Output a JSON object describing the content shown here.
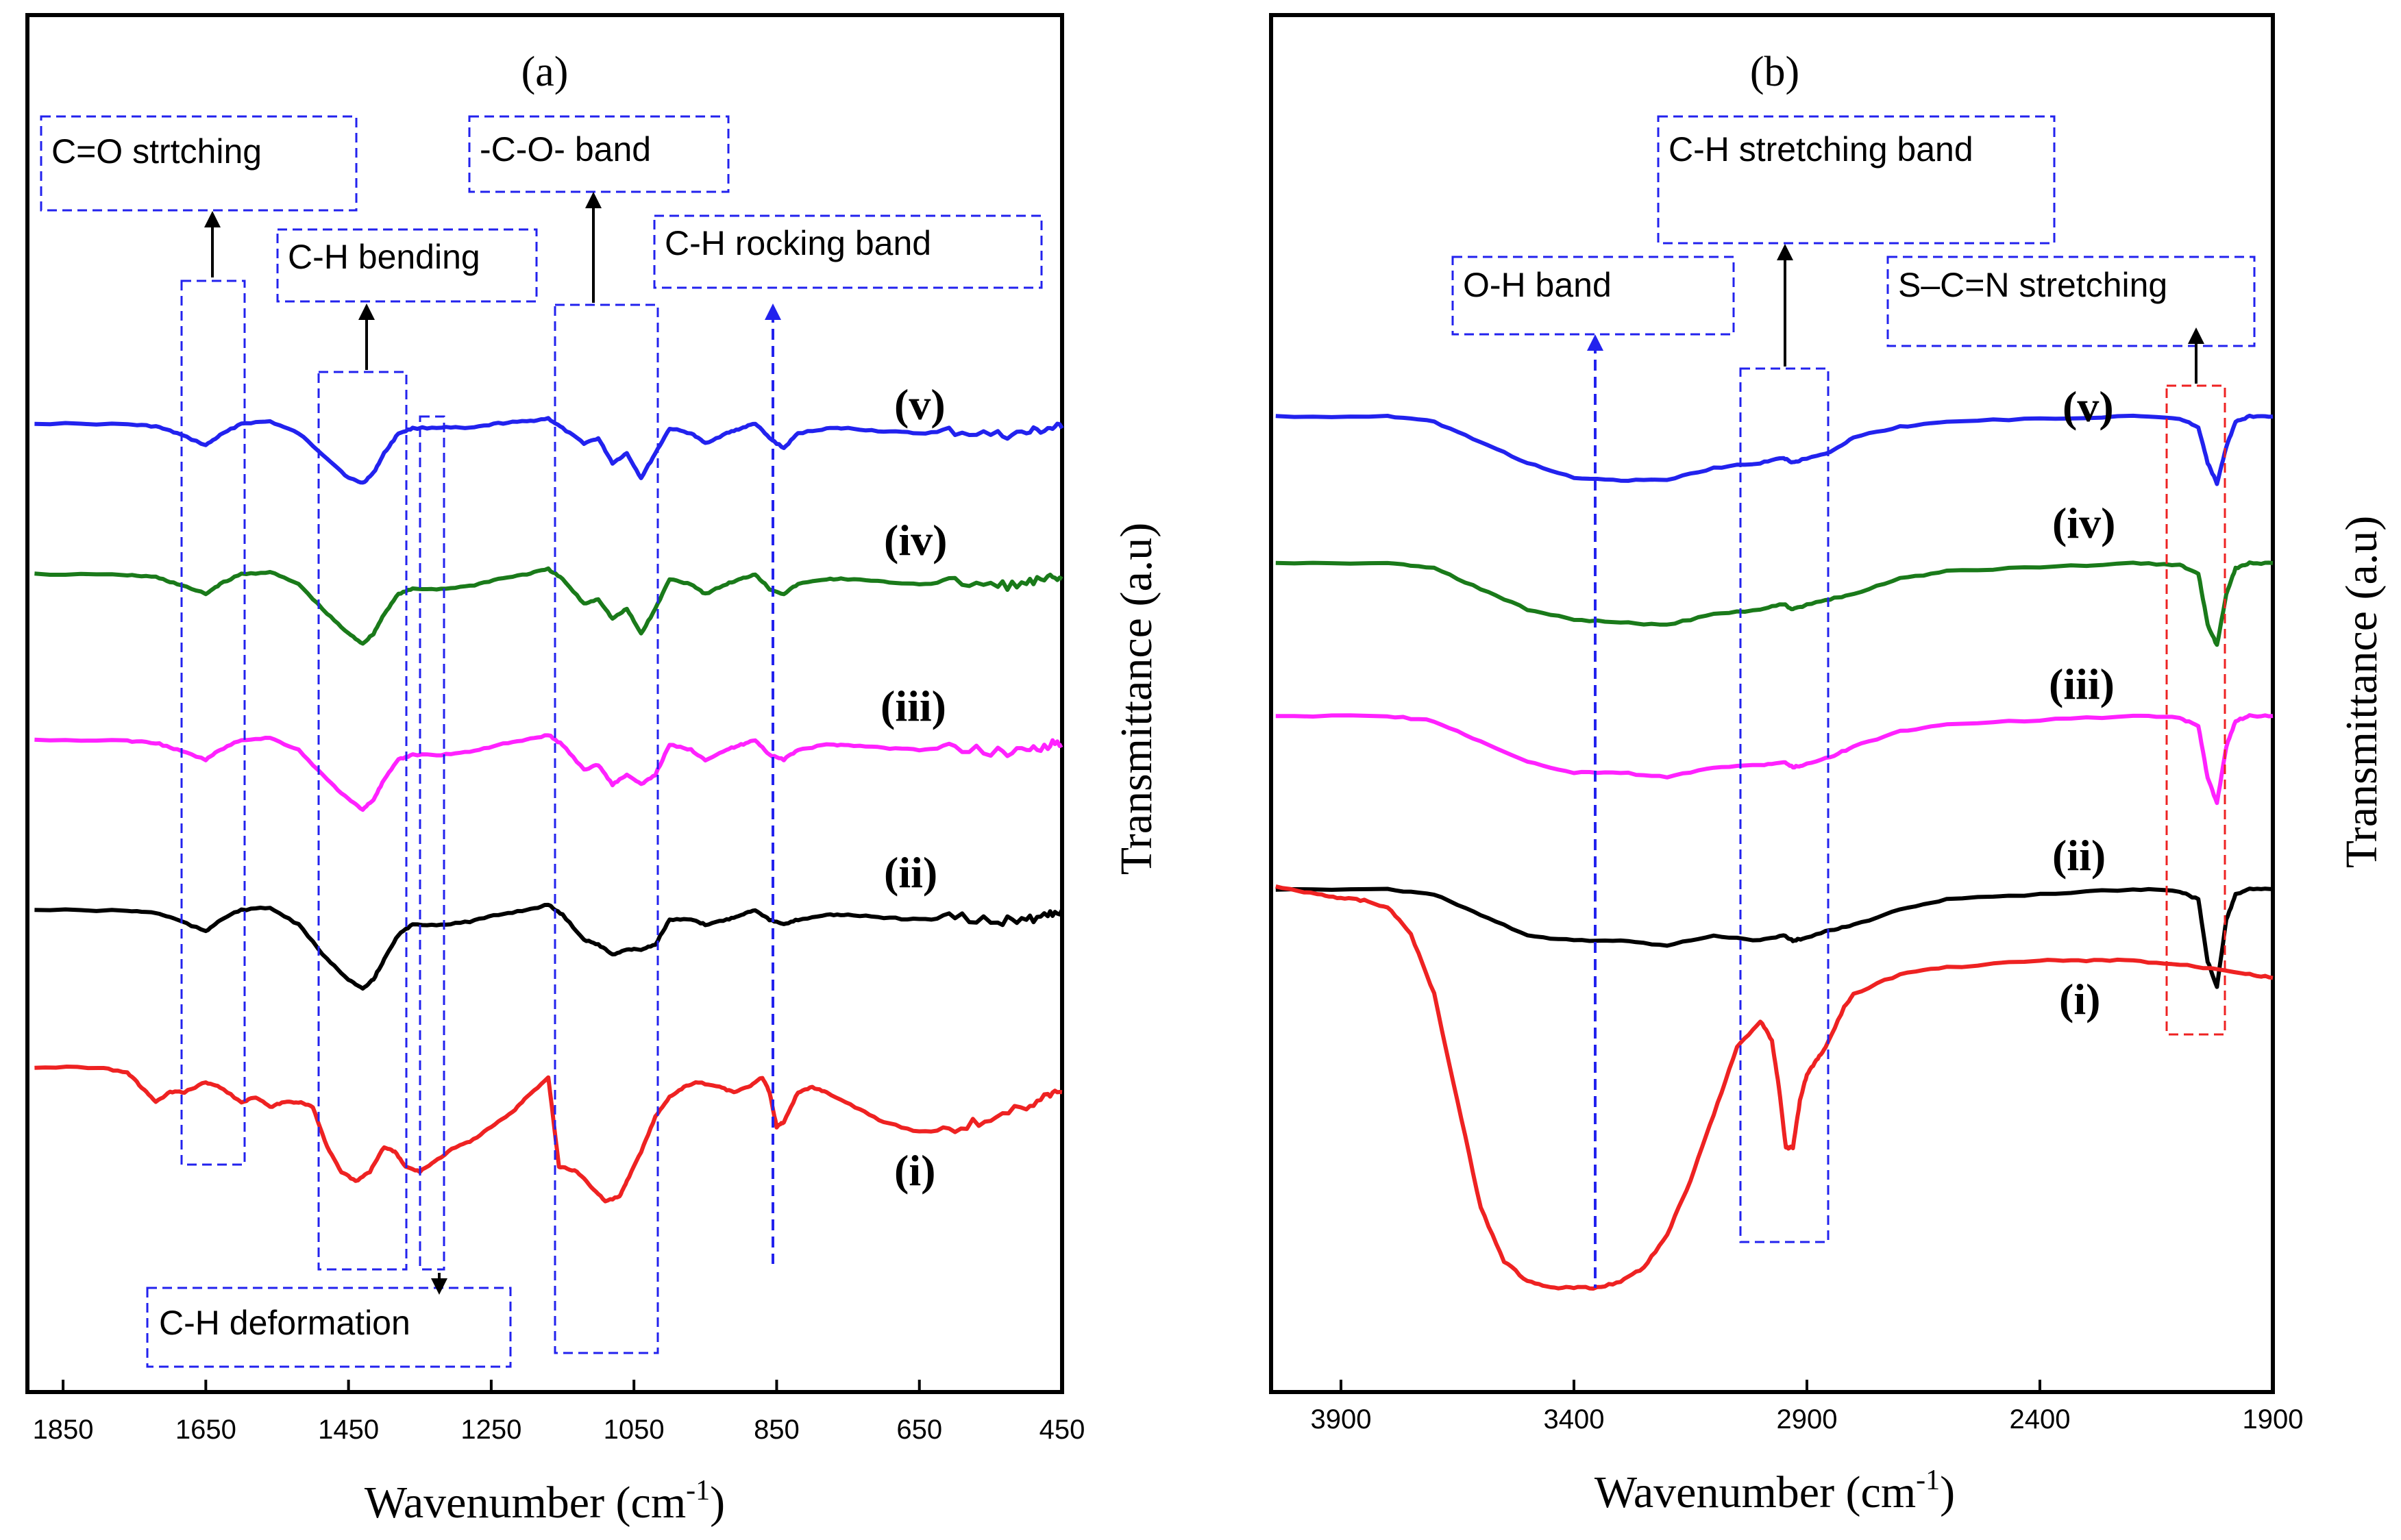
{
  "chart_data": [
    {
      "panel": "(a)",
      "type": "line",
      "xlabel": "Wavenumber (cm",
      "xlabel_sup": "-1",
      "xlabel_end": ")",
      "ylabel": "Transmittance (a.u)",
      "xlim": [
        1900,
        450
      ],
      "xticks": [
        1850,
        1650,
        1450,
        1250,
        1050,
        850,
        650,
        450
      ],
      "series": [
        {
          "name": "(v)",
          "color": "#2222ee",
          "offset": 4,
          "x": [
            1890,
            1760,
            1720,
            1690,
            1650,
            1630,
            1600,
            1560,
            1520,
            1480,
            1450,
            1430,
            1415,
            1400,
            1380,
            1360,
            1320,
            1280,
            1240,
            1200,
            1170,
            1150,
            1120,
            1100,
            1080,
            1060,
            1040,
            1020,
            1000,
            970,
            950,
            920,
            900,
            880,
            860,
            840,
            820,
            780,
            750,
            700,
            650,
            600,
            540,
            500,
            470,
            450
          ],
          "y": [
            0.0,
            -0.01,
            -0.03,
            -0.1,
            -0.22,
            -0.12,
            0.0,
            0.02,
            -0.1,
            -0.35,
            -0.55,
            -0.6,
            -0.5,
            -0.3,
            -0.1,
            -0.05,
            -0.04,
            -0.05,
            0.0,
            0.02,
            0.05,
            -0.05,
            -0.2,
            -0.15,
            -0.4,
            -0.3,
            -0.55,
            -0.3,
            -0.05,
            -0.1,
            -0.2,
            -0.1,
            -0.05,
            0.0,
            -0.15,
            -0.25,
            -0.1,
            -0.05,
            -0.05,
            -0.08,
            -0.1,
            -0.08,
            -0.12,
            -0.1,
            -0.05,
            -0.05
          ]
        },
        {
          "name": "(iv)",
          "color": "#1a7a1a",
          "offset": 3,
          "x": [
            1890,
            1760,
            1720,
            1690,
            1650,
            1630,
            1600,
            1560,
            1520,
            1480,
            1450,
            1430,
            1415,
            1400,
            1380,
            1360,
            1320,
            1280,
            1240,
            1200,
            1170,
            1150,
            1120,
            1100,
            1080,
            1060,
            1040,
            1020,
            1000,
            970,
            950,
            920,
            900,
            880,
            860,
            840,
            820,
            780,
            750,
            700,
            650,
            600,
            540,
            500,
            470,
            450
          ],
          "y": [
            0.0,
            -0.01,
            -0.03,
            -0.1,
            -0.2,
            -0.1,
            0.0,
            0.02,
            -0.1,
            -0.4,
            -0.6,
            -0.7,
            -0.6,
            -0.4,
            -0.2,
            -0.15,
            -0.15,
            -0.12,
            -0.05,
            0.0,
            0.05,
            -0.05,
            -0.3,
            -0.25,
            -0.45,
            -0.35,
            -0.6,
            -0.35,
            -0.05,
            -0.1,
            -0.2,
            -0.1,
            -0.05,
            0.0,
            -0.15,
            -0.2,
            -0.1,
            -0.05,
            -0.05,
            -0.08,
            -0.1,
            -0.08,
            -0.12,
            -0.1,
            -0.05,
            -0.05
          ]
        },
        {
          "name": "(iii)",
          "color": "#ff22ff",
          "offset": 2,
          "x": [
            1890,
            1760,
            1720,
            1690,
            1650,
            1630,
            1600,
            1560,
            1520,
            1480,
            1450,
            1430,
            1415,
            1400,
            1380,
            1360,
            1320,
            1280,
            1240,
            1200,
            1170,
            1150,
            1120,
            1100,
            1080,
            1060,
            1040,
            1020,
            1000,
            970,
            950,
            920,
            900,
            880,
            860,
            840,
            820,
            780,
            750,
            700,
            650,
            600,
            540,
            500,
            470,
            450
          ],
          "y": [
            0.0,
            -0.01,
            -0.03,
            -0.1,
            -0.2,
            -0.1,
            0.0,
            0.02,
            -0.1,
            -0.4,
            -0.6,
            -0.7,
            -0.6,
            -0.4,
            -0.2,
            -0.15,
            -0.15,
            -0.12,
            -0.05,
            0.0,
            0.05,
            -0.05,
            -0.3,
            -0.25,
            -0.45,
            -0.35,
            -0.45,
            -0.35,
            -0.05,
            -0.1,
            -0.2,
            -0.1,
            -0.05,
            0.0,
            -0.15,
            -0.2,
            -0.1,
            -0.05,
            -0.05,
            -0.08,
            -0.1,
            -0.08,
            -0.12,
            -0.1,
            -0.05,
            -0.05
          ]
        },
        {
          "name": "(ii)",
          "color": "#000000",
          "offset": 1,
          "x": [
            1890,
            1760,
            1720,
            1690,
            1650,
            1630,
            1600,
            1560,
            1520,
            1480,
            1450,
            1430,
            1415,
            1400,
            1380,
            1360,
            1320,
            1280,
            1240,
            1200,
            1170,
            1150,
            1120,
            1100,
            1080,
            1060,
            1040,
            1020,
            1000,
            970,
            950,
            920,
            900,
            880,
            860,
            840,
            820,
            780,
            750,
            700,
            650,
            600,
            540,
            500,
            470,
            450
          ],
          "y": [
            0.0,
            -0.01,
            -0.03,
            -0.1,
            -0.22,
            -0.1,
            0.0,
            0.02,
            -0.15,
            -0.5,
            -0.7,
            -0.8,
            -0.7,
            -0.5,
            -0.25,
            -0.15,
            -0.15,
            -0.12,
            -0.05,
            0.0,
            0.05,
            -0.05,
            -0.3,
            -0.35,
            -0.45,
            -0.4,
            -0.4,
            -0.35,
            -0.1,
            -0.1,
            -0.15,
            -0.1,
            -0.05,
            0.0,
            -0.1,
            -0.15,
            -0.1,
            -0.05,
            -0.05,
            -0.08,
            -0.1,
            -0.08,
            -0.12,
            -0.1,
            -0.05,
            0.0
          ]
        },
        {
          "name": "(i)",
          "color": "#ee2222",
          "offset": 0,
          "x": [
            1890,
            1800,
            1760,
            1740,
            1720,
            1700,
            1680,
            1650,
            1630,
            1600,
            1580,
            1560,
            1540,
            1520,
            1500,
            1480,
            1460,
            1440,
            1420,
            1400,
            1385,
            1370,
            1350,
            1330,
            1300,
            1280,
            1250,
            1220,
            1200,
            1170,
            1155,
            1150,
            1130,
            1110,
            1090,
            1070,
            1060,
            1040,
            1020,
            1000,
            980,
            960,
            930,
            910,
            890,
            870,
            860,
            850,
            840,
            820,
            800,
            780,
            740,
            700,
            650,
            600,
            550,
            500,
            470,
            450
          ],
          "y": [
            0.0,
            0.0,
            -0.05,
            -0.2,
            -0.35,
            -0.25,
            -0.25,
            -0.15,
            -0.2,
            -0.35,
            -0.3,
            -0.4,
            -0.35,
            -0.35,
            -0.4,
            -0.8,
            -1.05,
            -1.15,
            -1.05,
            -0.8,
            -0.85,
            -1.0,
            -1.05,
            -0.95,
            -0.8,
            -0.75,
            -0.6,
            -0.45,
            -0.3,
            -0.1,
            -1.0,
            -1.0,
            -1.05,
            -1.2,
            -1.35,
            -1.3,
            -1.15,
            -0.85,
            -0.5,
            -0.3,
            -0.2,
            -0.15,
            -0.2,
            -0.25,
            -0.2,
            -0.1,
            -0.25,
            -0.6,
            -0.55,
            -0.25,
            -0.2,
            -0.25,
            -0.4,
            -0.55,
            -0.65,
            -0.62,
            -0.5,
            -0.4,
            -0.25,
            -0.25
          ]
        }
      ],
      "annotations": [
        {
          "text": "C=O strtching"
        },
        {
          "text": "C-H bending"
        },
        {
          "text": "-C-O- band"
        },
        {
          "text": "C-H rocking band"
        },
        {
          "text": "C-H deformation"
        }
      ]
    },
    {
      "panel": "(b)",
      "type": "line",
      "xlabel": "Wavenumber (cm",
      "xlabel_sup": "-1",
      "xlabel_end": ")",
      "ylabel": "Transmittance (a.u)",
      "xlim": [
        4050,
        1900
      ],
      "xticks": [
        3900,
        3400,
        2900,
        2400,
        1900
      ],
      "series": [
        {
          "name": "(v)",
          "color": "#2222ee",
          "offset": 4,
          "x": [
            4040,
            3800,
            3700,
            3600,
            3500,
            3400,
            3300,
            3200,
            3100,
            3000,
            2950,
            2930,
            2910,
            2850,
            2800,
            2700,
            2600,
            2400,
            2200,
            2100,
            2060,
            2040,
            2020,
            2000,
            1980,
            1950,
            1900
          ],
          "y": [
            0.0,
            0.0,
            -0.05,
            -0.25,
            -0.45,
            -0.6,
            -0.62,
            -0.62,
            -0.5,
            -0.45,
            -0.4,
            -0.45,
            -0.42,
            -0.35,
            -0.2,
            -0.1,
            -0.05,
            -0.02,
            0.0,
            -0.02,
            -0.1,
            -0.45,
            -0.65,
            -0.3,
            -0.05,
            0.0,
            0.0
          ]
        },
        {
          "name": "(iv)",
          "color": "#1a7a1a",
          "offset": 3,
          "x": [
            4040,
            3800,
            3700,
            3600,
            3500,
            3400,
            3300,
            3200,
            3100,
            3000,
            2950,
            2930,
            2910,
            2850,
            2800,
            2700,
            2600,
            2400,
            2200,
            2100,
            2060,
            2040,
            2020,
            2000,
            1980,
            1950,
            1900
          ],
          "y": [
            0.0,
            0.0,
            -0.05,
            -0.25,
            -0.45,
            -0.55,
            -0.58,
            -0.6,
            -0.5,
            -0.45,
            -0.4,
            -0.45,
            -0.42,
            -0.35,
            -0.3,
            -0.15,
            -0.08,
            -0.04,
            0.0,
            -0.02,
            -0.1,
            -0.6,
            -0.8,
            -0.3,
            -0.05,
            0.0,
            0.0
          ]
        },
        {
          "name": "(iii)",
          "color": "#ff22ff",
          "offset": 2,
          "x": [
            4040,
            3800,
            3700,
            3600,
            3500,
            3400,
            3300,
            3200,
            3100,
            3000,
            2950,
            2930,
            2910,
            2850,
            2800,
            2700,
            2600,
            2400,
            2200,
            2100,
            2060,
            2040,
            2020,
            2000,
            1980,
            1950,
            1900
          ],
          "y": [
            0.0,
            0.0,
            -0.05,
            -0.25,
            -0.45,
            -0.55,
            -0.55,
            -0.6,
            -0.5,
            -0.48,
            -0.45,
            -0.5,
            -0.48,
            -0.4,
            -0.3,
            -0.15,
            -0.08,
            -0.04,
            0.0,
            -0.02,
            -0.1,
            -0.6,
            -0.85,
            -0.3,
            -0.05,
            0.0,
            0.0
          ]
        },
        {
          "name": "(ii)",
          "color": "#000000",
          "offset": 1,
          "x": [
            4040,
            3800,
            3700,
            3600,
            3500,
            3400,
            3300,
            3200,
            3100,
            3000,
            2950,
            2930,
            2910,
            2850,
            2800,
            2700,
            2600,
            2400,
            2200,
            2100,
            2060,
            2040,
            2020,
            2000,
            1980,
            1950,
            1900
          ],
          "y": [
            0.0,
            0.0,
            -0.05,
            -0.25,
            -0.45,
            -0.5,
            -0.5,
            -0.55,
            -0.45,
            -0.5,
            -0.45,
            -0.5,
            -0.48,
            -0.4,
            -0.35,
            -0.2,
            -0.1,
            -0.05,
            0.0,
            -0.02,
            -0.1,
            -0.7,
            -0.95,
            -0.3,
            -0.05,
            0.0,
            0.0
          ]
        },
        {
          "name": "(i)",
          "color": "#ee2222",
          "offset": 0,
          "x": [
            4040,
            3950,
            3900,
            3850,
            3800,
            3750,
            3700,
            3650,
            3600,
            3550,
            3500,
            3450,
            3400,
            3350,
            3300,
            3250,
            3200,
            3150,
            3100,
            3050,
            3000,
            2975,
            2960,
            2945,
            2930,
            2915,
            2900,
            2880,
            2860,
            2820,
            2800,
            2700,
            2600,
            2400,
            2300,
            2200,
            2100,
            2000,
            1950,
            1900
          ],
          "y": [
            0.0,
            -0.05,
            -0.08,
            -0.1,
            -0.15,
            -0.35,
            -0.8,
            -1.6,
            -2.4,
            -2.8,
            -2.95,
            -3.0,
            -3.0,
            -3.0,
            -2.95,
            -2.85,
            -2.6,
            -2.2,
            -1.7,
            -1.2,
            -1.0,
            -1.15,
            -1.5,
            -1.95,
            -1.95,
            -1.6,
            -1.4,
            -1.3,
            -1.2,
            -0.9,
            -0.8,
            -0.65,
            -0.6,
            -0.55,
            -0.55,
            -0.55,
            -0.58,
            -0.62,
            -0.65,
            -0.68
          ]
        }
      ],
      "annotations": [
        {
          "text": "C-H stretching band"
        },
        {
          "text": "O-H band"
        },
        {
          "text": "S–C=N stretching"
        }
      ]
    }
  ]
}
